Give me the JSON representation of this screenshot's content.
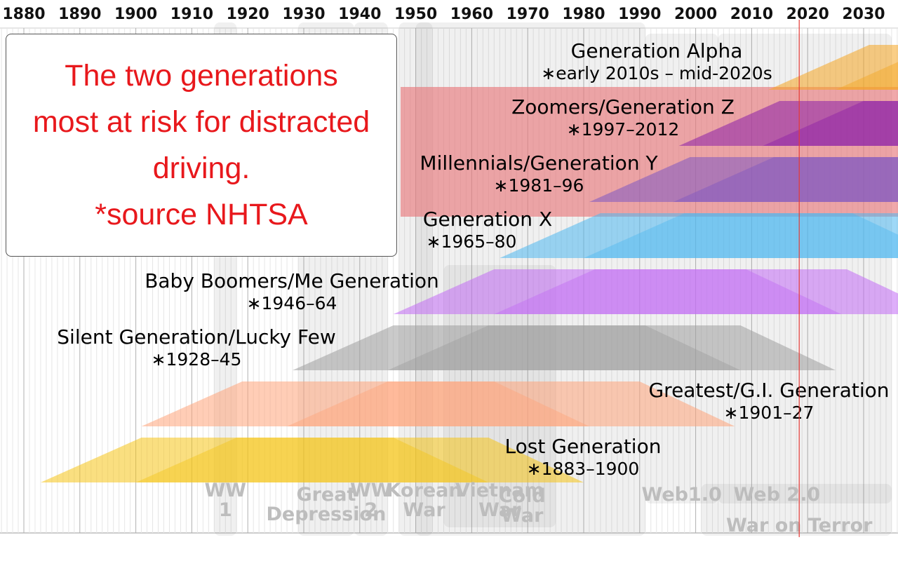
{
  "timeline": {
    "decades": [
      1880,
      1890,
      1900,
      1910,
      1920,
      1930,
      1940,
      1950,
      1960,
      1970,
      1980,
      1990,
      2000,
      2010,
      2020,
      2030
    ],
    "current_year": 2020,
    "current_year_color": "#e53935"
  },
  "callout": {
    "lines": [
      "The two generations",
      "most at risk for distracted",
      "driving.",
      "*source NHTSA"
    ],
    "color": "#e8181c"
  },
  "events": [
    {
      "id": "ww1",
      "label_lines": [
        "WW",
        "1"
      ],
      "start": 1914,
      "end": 1918
    },
    {
      "id": "great-depression",
      "label_lines": [
        "Great",
        "Depression"
      ],
      "start": 1929,
      "end": 1939
    },
    {
      "id": "ww2",
      "label_lines": [
        "WW",
        "2"
      ],
      "start": 1939,
      "end": 1945
    },
    {
      "id": "korean-war",
      "label_lines": [
        "Korean",
        "War"
      ],
      "start": 1950,
      "end": 1953
    },
    {
      "id": "vietnam-war",
      "label_lines": [
        "Vietnam",
        "War"
      ],
      "start": 1955,
      "end": 1975
    },
    {
      "id": "cold-war",
      "label_lines": [
        "Cold",
        "War"
      ],
      "start": 1947,
      "end": 1991
    },
    {
      "id": "web-1",
      "label_lines": [
        "Web1.0"
      ],
      "start": 1991,
      "end": 2004
    },
    {
      "id": "web-2",
      "label_lines": [
        "Web 2.0"
      ],
      "start": 2004,
      "end": 2035
    },
    {
      "id": "war-on-terror",
      "label_lines": [
        "War on Terror"
      ],
      "start": 2001,
      "end": 2035
    }
  ],
  "generations": [
    {
      "id": "generation-alpha",
      "name": "Generation Alpha",
      "years": "∗early 2010s – mid-2020s",
      "birth_start": 2013,
      "birth_end": 2025,
      "color": "#f5a623"
    },
    {
      "id": "generation-z",
      "name": "Zoomers/Generation Z",
      "years": "∗1997–2012",
      "birth_start": 1997,
      "birth_end": 2012,
      "color": "#8b1fa9",
      "highlighted": true
    },
    {
      "id": "generation-y",
      "name": "Millennials/Generation Y",
      "years": "∗1981–96",
      "birth_start": 1981,
      "birth_end": 1996,
      "color": "#7e57c2",
      "highlighted": true
    },
    {
      "id": "generation-x",
      "name": "Generation X",
      "years": "∗1965–80",
      "birth_start": 1965,
      "birth_end": 1980,
      "color": "#4fb8f0"
    },
    {
      "id": "baby-boomers",
      "name": "Baby Boomers/Me Generation",
      "years": "∗1946–64",
      "birth_start": 1946,
      "birth_end": 1964,
      "color": "#c26cf5"
    },
    {
      "id": "silent-generation",
      "name": "Silent Generation/Lucky Few",
      "years": "∗1928–45",
      "birth_start": 1928,
      "birth_end": 1945,
      "color": "#9e9e9e"
    },
    {
      "id": "greatest-generation",
      "name": "Greatest/G.I. Generation",
      "years": "∗1901–27",
      "birth_start": 1901,
      "birth_end": 1927,
      "color": "#ffa47a"
    },
    {
      "id": "lost-generation",
      "name": "Lost Generation",
      "years": "∗1883–1900",
      "birth_start": 1883,
      "birth_end": 1900,
      "color": "#f5c518"
    }
  ],
  "highlight_color": "#e8797d"
}
